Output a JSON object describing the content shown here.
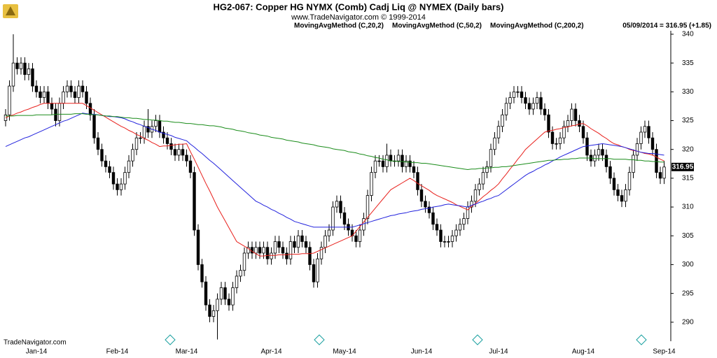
{
  "chart_data": {
    "type": "candlestick",
    "title": "HG2-067:  Copper HG NYMX (Comb) Cadj Liq @ NYMEX  (Daily bars)",
    "subtitle": "www.TradeNavigator.com © 1999-2014",
    "last_price_note": "05/09/2014 = 316.95 (+1.85)",
    "watermark": "TradeNavigator.com",
    "categories": [
      null,
      null,
      null,
      null,
      null,
      null,
      null,
      null,
      "Jan-14",
      null,
      null,
      null,
      null,
      null,
      null,
      null,
      null,
      null,
      null,
      null,
      null,
      null,
      null,
      null,
      null,
      null,
      null,
      null,
      null,
      "Feb-14",
      null,
      null,
      null,
      null,
      null,
      null,
      null,
      null,
      null,
      null,
      null,
      null,
      null,
      null,
      null,
      null,
      null,
      "Mar-14",
      null,
      null,
      null,
      null,
      null,
      null,
      null,
      null,
      null,
      null,
      null,
      null,
      null,
      null,
      null,
      null,
      null,
      null,
      null,
      null,
      null,
      "Apr-14",
      null,
      null,
      null,
      null,
      null,
      null,
      null,
      null,
      null,
      null,
      null,
      null,
      null,
      null,
      null,
      null,
      null,
      null,
      "May-14",
      null,
      null,
      null,
      null,
      null,
      null,
      null,
      null,
      null,
      null,
      null,
      null,
      null,
      null,
      null,
      null,
      null,
      null,
      null,
      "Jun-14",
      null,
      null,
      null,
      null,
      null,
      null,
      null,
      null,
      null,
      null,
      null,
      null,
      null,
      null,
      null,
      null,
      null,
      null,
      null,
      "Jul-14",
      null,
      null,
      null,
      null,
      null,
      null,
      null,
      null,
      null,
      null,
      null,
      null,
      null,
      null,
      null,
      null,
      null,
      null,
      null,
      null,
      null,
      "Aug-14",
      null,
      null,
      null,
      null,
      null,
      null,
      null,
      null,
      null,
      null,
      null,
      null,
      null,
      null,
      null,
      null,
      null,
      null,
      null,
      null,
      "Sep-14"
    ],
    "open": [
      325,
      326,
      331,
      335,
      334,
      335,
      333,
      334,
      331,
      330,
      329,
      330,
      328,
      327,
      325,
      328,
      330,
      331,
      330,
      329,
      331,
      330,
      328,
      326,
      322,
      320,
      318,
      317,
      316,
      314,
      313,
      314,
      316,
      318,
      320,
      322,
      322,
      324,
      323,
      324,
      325,
      323,
      322,
      321,
      320,
      319,
      320,
      319,
      318,
      316,
      306,
      300,
      297,
      293,
      291,
      292,
      294,
      296,
      294,
      293,
      296,
      298,
      299,
      302,
      303,
      302,
      303,
      302,
      303,
      301,
      302,
      304,
      303,
      302,
      301,
      304,
      303,
      305,
      304,
      303,
      300,
      297,
      301,
      303,
      305,
      306,
      310,
      311,
      309,
      307,
      306,
      305,
      304,
      306,
      308,
      312,
      316,
      318,
      318,
      317,
      319,
      318,
      318,
      319,
      317,
      318,
      317,
      316,
      313,
      311,
      310,
      309,
      307,
      306,
      304,
      304,
      304,
      305,
      306,
      307,
      308,
      310,
      311,
      313,
      314,
      316,
      317,
      320,
      322,
      324,
      326,
      328,
      329,
      330,
      330,
      329,
      328,
      327,
      328,
      329,
      327,
      326,
      323,
      321,
      321,
      322,
      324,
      325,
      327,
      325,
      324,
      322,
      319,
      318,
      319,
      320,
      319,
      317,
      315,
      313,
      312,
      311,
      313,
      316,
      319,
      321,
      323,
      324,
      322,
      320,
      316,
      315
    ],
    "high": [
      327,
      332,
      340,
      336,
      336,
      336,
      335,
      335,
      332,
      331,
      331,
      331,
      329,
      328,
      329,
      331,
      332,
      332,
      331,
      332,
      332,
      331,
      329,
      327,
      323,
      321,
      319,
      318,
      317,
      315,
      315,
      317,
      319,
      321,
      323,
      323,
      325,
      327,
      325,
      326,
      326,
      324,
      323,
      322,
      321,
      321,
      321,
      320,
      319,
      317,
      307,
      301,
      298,
      294,
      293,
      295,
      297,
      297,
      295,
      297,
      299,
      300,
      303,
      304,
      304,
      304,
      304,
      304,
      304,
      303,
      305,
      305,
      304,
      303,
      305,
      305,
      306,
      306,
      305,
      304,
      301,
      302,
      304,
      306,
      307,
      311,
      312,
      312,
      310,
      308,
      307,
      306,
      307,
      309,
      313,
      317,
      319,
      319,
      319,
      321,
      320,
      319,
      320,
      320,
      319,
      319,
      318,
      317,
      314,
      312,
      311,
      310,
      308,
      307,
      305,
      305,
      306,
      307,
      308,
      309,
      311,
      312,
      314,
      315,
      317,
      318,
      321,
      323,
      325,
      327,
      329,
      330,
      331,
      331,
      331,
      330,
      329,
      329,
      330,
      330,
      328,
      327,
      324,
      322,
      323,
      325,
      326,
      328,
      328,
      326,
      325,
      323,
      320,
      320,
      321,
      321,
      320,
      318,
      316,
      314,
      313,
      314,
      317,
      320,
      322,
      324,
      325,
      325,
      323,
      321,
      317,
      318
    ],
    "low": [
      324,
      325,
      330,
      333,
      333,
      332,
      332,
      330,
      329,
      328,
      328,
      327,
      326,
      324,
      324,
      327,
      329,
      329,
      328,
      328,
      329,
      327,
      325,
      321,
      319,
      317,
      316,
      315,
      313,
      312,
      312,
      313,
      315,
      317,
      319,
      321,
      321,
      322,
      322,
      323,
      322,
      321,
      320,
      319,
      318,
      318,
      318,
      317,
      315,
      305,
      299,
      296,
      292,
      290,
      290,
      287,
      293,
      293,
      292,
      292,
      295,
      297,
      298,
      301,
      301,
      301,
      301,
      301,
      300,
      300,
      301,
      302,
      301,
      300,
      300,
      302,
      302,
      303,
      302,
      299,
      296,
      296,
      300,
      302,
      304,
      305,
      309,
      308,
      306,
      305,
      304,
      303,
      303,
      305,
      307,
      311,
      315,
      317,
      316,
      316,
      317,
      317,
      317,
      316,
      316,
      316,
      315,
      312,
      310,
      309,
      308,
      306,
      305,
      303,
      303,
      303,
      303,
      304,
      305,
      306,
      307,
      309,
      310,
      312,
      313,
      315,
      316,
      319,
      321,
      323,
      325,
      327,
      328,
      329,
      328,
      327,
      326,
      326,
      327,
      326,
      325,
      322,
      320,
      320,
      320,
      321,
      323,
      324,
      324,
      323,
      321,
      318,
      317,
      317,
      318,
      318,
      316,
      314,
      312,
      311,
      310,
      310,
      312,
      315,
      318,
      320,
      322,
      321,
      319,
      315,
      314,
      314
    ],
    "close": [
      326,
      331,
      335,
      334,
      335,
      333,
      334,
      331,
      330,
      329,
      330,
      328,
      327,
      325,
      328,
      330,
      331,
      330,
      329,
      331,
      330,
      328,
      326,
      322,
      320,
      318,
      317,
      316,
      314,
      313,
      314,
      316,
      318,
      320,
      322,
      322,
      324,
      323,
      324,
      325,
      323,
      322,
      321,
      320,
      319,
      320,
      319,
      318,
      316,
      306,
      300,
      297,
      293,
      291,
      292,
      294,
      296,
      294,
      293,
      296,
      298,
      299,
      302,
      303,
      302,
      303,
      302,
      303,
      301,
      302,
      304,
      303,
      302,
      301,
      304,
      303,
      305,
      304,
      303,
      300,
      297,
      301,
      303,
      305,
      306,
      310,
      311,
      309,
      307,
      306,
      305,
      304,
      306,
      308,
      312,
      316,
      318,
      318,
      317,
      319,
      318,
      318,
      319,
      317,
      318,
      317,
      316,
      313,
      311,
      310,
      309,
      307,
      306,
      304,
      304,
      304,
      305,
      306,
      307,
      308,
      310,
      311,
      313,
      314,
      316,
      317,
      320,
      322,
      324,
      326,
      328,
      329,
      330,
      330,
      329,
      328,
      327,
      328,
      329,
      327,
      326,
      323,
      321,
      321,
      322,
      324,
      325,
      327,
      325,
      324,
      322,
      319,
      318,
      319,
      320,
      319,
      317,
      315,
      313,
      312,
      311,
      313,
      316,
      319,
      321,
      323,
      324,
      322,
      320,
      316,
      315,
      316.95
    ],
    "up_color": "#ffffff",
    "down_color": "#000000",
    "series": [
      {
        "name": "MovingAvgMethod (C,20,2)",
        "color": "#e8201c",
        "values": [
          325.5,
          325.8,
          326,
          326.3,
          326.5,
          326.8,
          327,
          327.3,
          327.5,
          327.8,
          328,
          328,
          328,
          328,
          328,
          328,
          328,
          328,
          328,
          328,
          328,
          327.6,
          327.2,
          326.8,
          326.4,
          326,
          325.6,
          325.2,
          324.8,
          324.4,
          324,
          323.7,
          323.3,
          323,
          322.6,
          322.3,
          321.9,
          321.6,
          321.2,
          320.9,
          320.5,
          320.6,
          320.6,
          320.7,
          320.8,
          320.9,
          320.9,
          321,
          319.6,
          318.3,
          316.9,
          315.5,
          314.1,
          312.8,
          311.4,
          310,
          308.8,
          307.6,
          306.4,
          305.2,
          304,
          303.6,
          303.2,
          302.8,
          302.3,
          301.9,
          301.5,
          301.5,
          301.6,
          301.6,
          301.6,
          301.7,
          301.7,
          301.7,
          301.8,
          301.8,
          301.8,
          301.9,
          301.9,
          301.9,
          302,
          302.3,
          302.6,
          302.9,
          303.2,
          303.5,
          303.8,
          304.1,
          304.4,
          304.7,
          305,
          305.8,
          306.6,
          307.4,
          308.2,
          309,
          309.8,
          310.6,
          311.4,
          312.2,
          313,
          313.4,
          313.8,
          314.2,
          314.6,
          315,
          314.6,
          314.1,
          313.7,
          313.3,
          312.9,
          312.4,
          312,
          311.7,
          311.4,
          311.1,
          310.8,
          310.4,
          310.1,
          309.8,
          309.5,
          310.1,
          310.6,
          311.2,
          311.8,
          312.3,
          312.9,
          313.4,
          314,
          314.9,
          315.7,
          316.6,
          317.4,
          318.3,
          319.1,
          320,
          320.6,
          321.2,
          321.8,
          322.4,
          323,
          323.2,
          323.3,
          323.5,
          323.6,
          323.8,
          323.9,
          324.1,
          324.2,
          324.4,
          324.5,
          324.1,
          323.6,
          323.2,
          322.8,
          322.3,
          321.9,
          321.4,
          321,
          320.8,
          320.5,
          320.3,
          320,
          319.8,
          319.7,
          319.5,
          319.3,
          319.2,
          319,
          318.7,
          318.3,
          318
        ]
      },
      {
        "name": "MovingAvgMethod (C,50,2)",
        "color": "#2222dd",
        "values": [
          320.5,
          320.8,
          321.1,
          321.4,
          321.7,
          322,
          322.2,
          322.5,
          322.8,
          323.1,
          323.4,
          323.7,
          324,
          324.3,
          324.6,
          324.9,
          325.1,
          325.4,
          325.7,
          326,
          326.3,
          326.2,
          326.1,
          326.1,
          326,
          325.9,
          325.8,
          325.7,
          325.7,
          325.6,
          325.5,
          325.3,
          325,
          324.8,
          324.5,
          324.3,
          324,
          323.8,
          323.5,
          323.3,
          323,
          322.8,
          322.6,
          322.4,
          322.1,
          321.9,
          321.7,
          321.5,
          320.9,
          320.4,
          319.8,
          319.3,
          318.7,
          318.1,
          317.6,
          317,
          316.4,
          315.8,
          315.2,
          314.6,
          314,
          313.4,
          312.8,
          312.2,
          311.6,
          311,
          310.7,
          310.3,
          310,
          309.6,
          309.3,
          308.9,
          308.6,
          308.2,
          307.9,
          307.5,
          307.3,
          307.1,
          306.9,
          306.7,
          306.5,
          306.5,
          306.5,
          306.5,
          306.5,
          306.5,
          306.5,
          306.5,
          306.5,
          306.5,
          306.5,
          306.7,
          306.9,
          307.1,
          307.3,
          307.5,
          307.7,
          307.9,
          308.1,
          308.3,
          308.5,
          308.6,
          308.8,
          308.9,
          309,
          309.2,
          309.3,
          309.4,
          309.6,
          309.7,
          309.8,
          310,
          310.1,
          310.2,
          310.4,
          310.5,
          310.4,
          310.3,
          310.2,
          310.1,
          310,
          310.3,
          310.5,
          310.8,
          311,
          311.3,
          311.5,
          311.8,
          312,
          312.5,
          313,
          313.5,
          314,
          314.5,
          315,
          315.5,
          315.9,
          316.2,
          316.6,
          316.9,
          317.3,
          317.6,
          318,
          318.3,
          318.7,
          319,
          319.3,
          319.6,
          319.9,
          320.2,
          320.5,
          320.6,
          320.7,
          320.8,
          320.9,
          321,
          320.9,
          320.8,
          320.7,
          320.6,
          320.5,
          320.3,
          320.1,
          319.9,
          319.7,
          319.5,
          319.4,
          319.3,
          319.3,
          319.2,
          319.1,
          319
        ]
      },
      {
        "name": "MovingAvgMethod (C,200,2)",
        "color": "#1a8c1a",
        "values": [
          325.8,
          325.8,
          325.8,
          325.9,
          325.9,
          325.9,
          325.9,
          325.9,
          326,
          326,
          326,
          326,
          326,
          326.1,
          326.1,
          326.1,
          326.1,
          326.1,
          326.2,
          326.2,
          326.2,
          326.1,
          326.1,
          326,
          326,
          325.9,
          325.8,
          325.8,
          325.7,
          325.7,
          325.6,
          325.5,
          325.5,
          325.4,
          325.4,
          325.3,
          325.2,
          325.2,
          325.1,
          325.1,
          325,
          324.9,
          324.9,
          324.8,
          324.7,
          324.7,
          324.6,
          324.5,
          324.5,
          324.4,
          324.3,
          324.3,
          324.2,
          324.1,
          324.1,
          324,
          323.9,
          323.7,
          323.6,
          323.5,
          323.3,
          323.2,
          323.1,
          322.9,
          322.8,
          322.7,
          322.5,
          322.4,
          322.3,
          322.1,
          322,
          321.9,
          321.8,
          321.6,
          321.5,
          321.4,
          321.3,
          321.1,
          321,
          320.9,
          320.8,
          320.6,
          320.5,
          320.4,
          320.3,
          320.1,
          320,
          319.9,
          319.8,
          319.6,
          319.5,
          319.4,
          319.2,
          319.1,
          318.9,
          318.8,
          318.6,
          318.5,
          318.3,
          318.2,
          318,
          318,
          317.9,
          317.9,
          317.8,
          317.8,
          317.7,
          317.7,
          317.6,
          317.6,
          317.5,
          317.4,
          317.3,
          317.2,
          317.1,
          317,
          316.9,
          316.8,
          316.7,
          316.6,
          316.5,
          316.6,
          316.6,
          316.7,
          316.7,
          316.8,
          316.8,
          316.9,
          316.9,
          317,
          317,
          317.1,
          317.2,
          317.3,
          317.4,
          317.5,
          317.6,
          317.7,
          317.8,
          317.9,
          318,
          318.1,
          318.1,
          318.2,
          318.2,
          318.3,
          318.3,
          318.4,
          318.4,
          318.5,
          318.5,
          318.5,
          318.5,
          318.4,
          318.4,
          318.4,
          318.4,
          318.4,
          318.3,
          318.3,
          318.3,
          318.3,
          318.2,
          318.2,
          318.1,
          318.1,
          318,
          318,
          317.9,
          317.9,
          317.8,
          317.8
        ]
      }
    ],
    "ylim": [
      286.7,
      340.6
    ],
    "yticks": [
      290,
      295,
      300,
      305,
      310,
      315,
      320,
      325,
      330,
      335,
      340
    ],
    "grid": false
  }
}
